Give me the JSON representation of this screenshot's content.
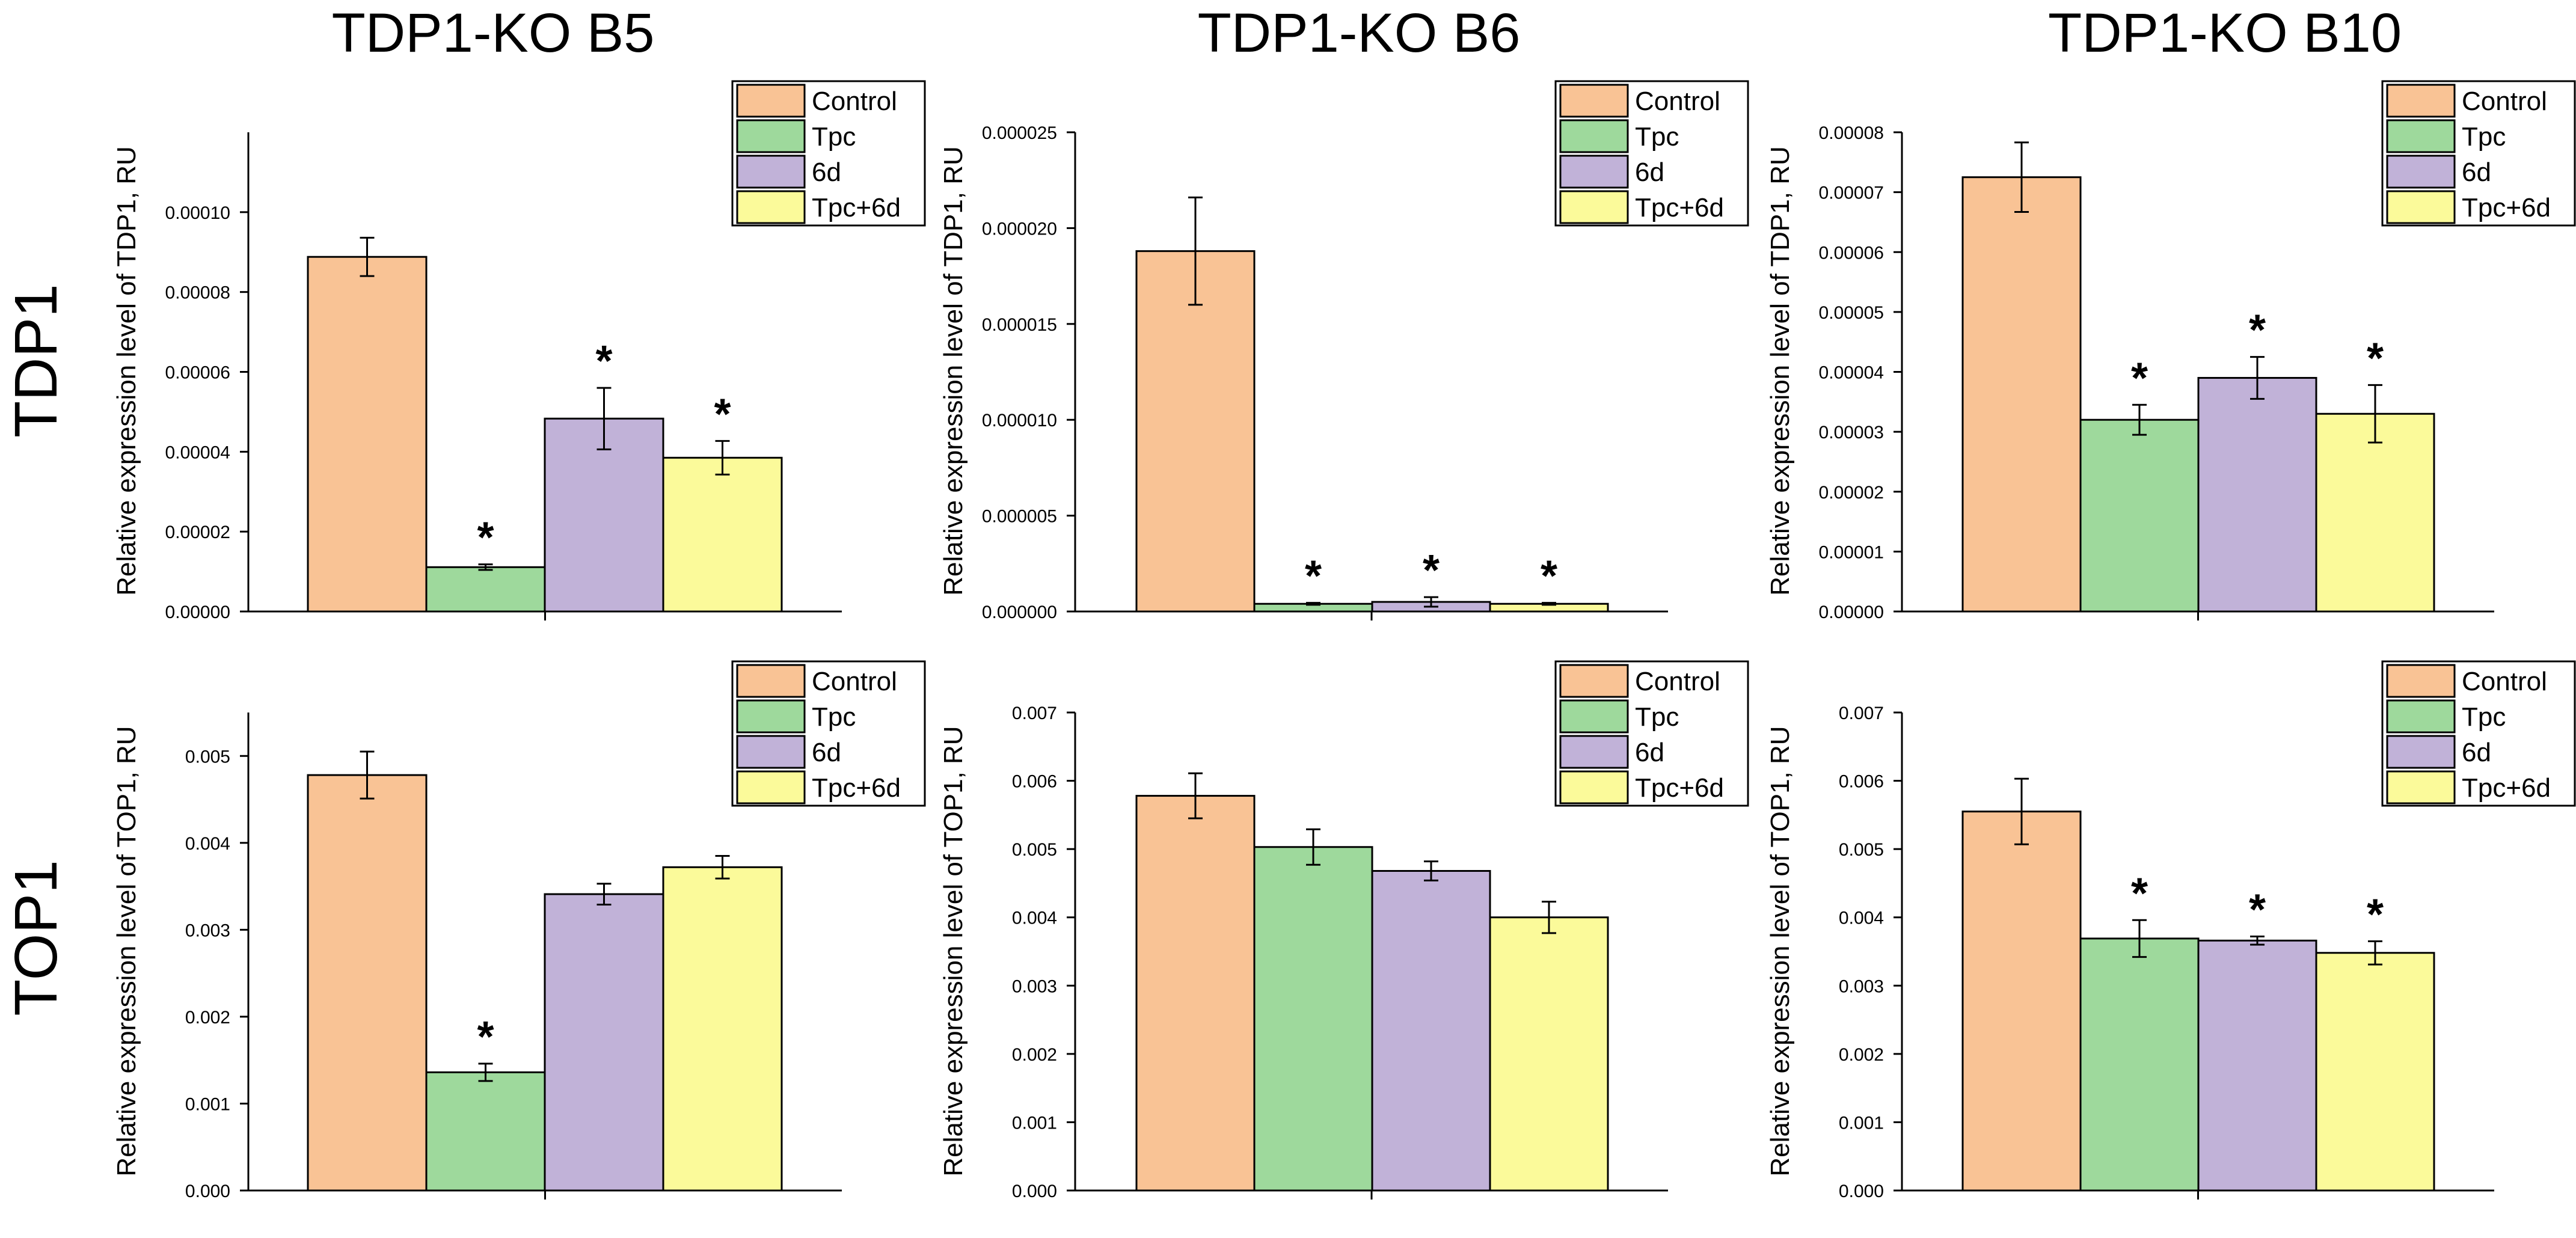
{
  "column_titles": [
    "TDP1-KO B5",
    "TDP1-KO B6",
    "TDP1-KO B10"
  ],
  "row_labels": [
    "TDP1",
    "TOP1"
  ],
  "colors": {
    "Control": "#F9C395",
    "Tpc": "#9ED99C",
    "6d": "#C1B2D8",
    "Tpc+6d": "#FBFA9A",
    "axis": "#000000"
  },
  "chart_data": [
    {
      "type": "bar",
      "title": "TDP1-KO B5",
      "row": "TDP1",
      "ylabel": "Relative expression level of TDP1, RU",
      "ylim": [
        0,
        0.00012
      ],
      "yticks": [
        0,
        2e-05,
        4e-05,
        6e-05,
        8e-05,
        0.0001
      ],
      "ytick_labels": [
        "0.00000",
        "0.00002",
        "0.00004",
        "0.00006",
        "0.00008",
        "0.00010"
      ],
      "categories": [
        "Control",
        "Tpc",
        "6d",
        "Tpc+6d"
      ],
      "values": [
        8.88e-05,
        1.11e-05,
        4.83e-05,
        3.85e-05
      ],
      "errors": [
        4.8e-06,
        7e-07,
        7.7e-06,
        4.2e-06
      ],
      "significance": [
        "",
        "*",
        "*",
        "*"
      ],
      "legend": [
        "Control",
        "Tpc",
        "6d",
        "Tpc+6d"
      ],
      "legend_position": "top-right"
    },
    {
      "type": "bar",
      "title": "TDP1-KO B6",
      "row": "TDP1",
      "ylabel": "Relative expression level of TDP1, RU",
      "ylim": [
        0,
        2.5e-05
      ],
      "yticks": [
        0,
        5e-06,
        1e-05,
        1.5e-05,
        2e-05,
        2.5e-05
      ],
      "ytick_labels": [
        "0.000000",
        "0.000005",
        "0.000010",
        "0.000015",
        "0.000020",
        "0.000025"
      ],
      "categories": [
        "Control",
        "Tpc",
        "6d",
        "Tpc+6d"
      ],
      "values": [
        1.88e-05,
        4e-07,
        5e-07,
        4e-07
      ],
      "errors": [
        2.8e-06,
        5e-08,
        2.5e-07,
        5e-08
      ],
      "significance": [
        "",
        "*",
        "*",
        "*"
      ],
      "legend": [
        "Control",
        "Tpc",
        "6d",
        "Tpc+6d"
      ],
      "legend_position": "top-right"
    },
    {
      "type": "bar",
      "title": "TDP1-KO B10",
      "row": "TDP1",
      "ylabel": "Relative expression level of TDP1, RU",
      "ylim": [
        0,
        8e-05
      ],
      "yticks": [
        0,
        1e-05,
        2e-05,
        3e-05,
        4e-05,
        5e-05,
        6e-05,
        7e-05,
        8e-05
      ],
      "ytick_labels": [
        "0.00000",
        "0.00001",
        "0.00002",
        "0.00003",
        "0.00004",
        "0.00005",
        "0.00006",
        "0.00007",
        "0.00008"
      ],
      "categories": [
        "Control",
        "Tpc",
        "6d",
        "Tpc+6d"
      ],
      "values": [
        7.25e-05,
        3.2e-05,
        3.9e-05,
        3.3e-05
      ],
      "errors": [
        5.8e-06,
        2.5e-06,
        3.5e-06,
        4.8e-06
      ],
      "significance": [
        "",
        "*",
        "*",
        "*"
      ],
      "legend": [
        "Control",
        "Tpc",
        "6d",
        "Tpc+6d"
      ],
      "legend_position": "top-right"
    },
    {
      "type": "bar",
      "title": "TDP1-KO B5",
      "row": "TOP1",
      "ylabel": "Relative expression level of TOP1, RU",
      "ylim": [
        0,
        0.0055
      ],
      "yticks": [
        0,
        0.001,
        0.002,
        0.003,
        0.004,
        0.005
      ],
      "ytick_labels": [
        "0.000",
        "0.001",
        "0.002",
        "0.003",
        "0.004",
        "0.005"
      ],
      "categories": [
        "Control",
        "Tpc",
        "6d",
        "Tpc+6d"
      ],
      "values": [
        0.00478,
        0.00136,
        0.00341,
        0.00372
      ],
      "errors": [
        0.00027,
        0.0001,
        0.00012,
        0.00013
      ],
      "significance": [
        "",
        "*",
        "",
        ""
      ],
      "legend": [
        "Control",
        "Tpc",
        "6d",
        "Tpc+6d"
      ],
      "legend_position": "top-right"
    },
    {
      "type": "bar",
      "title": "TDP1-KO B6",
      "row": "TOP1",
      "ylabel": "Relative expression level of TOP1, RU",
      "ylim": [
        0,
        0.007
      ],
      "yticks": [
        0,
        0.001,
        0.002,
        0.003,
        0.004,
        0.005,
        0.006,
        0.007
      ],
      "ytick_labels": [
        "0.000",
        "0.001",
        "0.002",
        "0.003",
        "0.004",
        "0.005",
        "0.006",
        "0.007"
      ],
      "categories": [
        "Control",
        "Tpc",
        "6d",
        "Tpc+6d"
      ],
      "values": [
        0.00578,
        0.00503,
        0.00468,
        0.004
      ],
      "errors": [
        0.00033,
        0.00026,
        0.00014,
        0.00023
      ],
      "significance": [
        "",
        "",
        "",
        ""
      ],
      "legend": [
        "Control",
        "Tpc",
        "6d",
        "Tpc+6d"
      ],
      "legend_position": "top-right"
    },
    {
      "type": "bar",
      "title": "TDP1-KO B10",
      "row": "TOP1",
      "ylabel": "Relative expression level of TOP1, RU",
      "ylim": [
        0,
        0.007
      ],
      "yticks": [
        0,
        0.001,
        0.002,
        0.003,
        0.004,
        0.005,
        0.006,
        0.007
      ],
      "ytick_labels": [
        "0.000",
        "0.001",
        "0.002",
        "0.003",
        "0.004",
        "0.005",
        "0.006",
        "0.007"
      ],
      "categories": [
        "Control",
        "Tpc",
        "6d",
        "Tpc+6d"
      ],
      "values": [
        0.00555,
        0.00369,
        0.00366,
        0.00348
      ],
      "errors": [
        0.00048,
        0.00027,
        6e-05,
        0.00017
      ],
      "significance": [
        "",
        "*",
        "*",
        "*"
      ],
      "legend": [
        "Control",
        "Tpc",
        "6d",
        "Tpc+6d"
      ],
      "legend_position": "top-right"
    }
  ]
}
